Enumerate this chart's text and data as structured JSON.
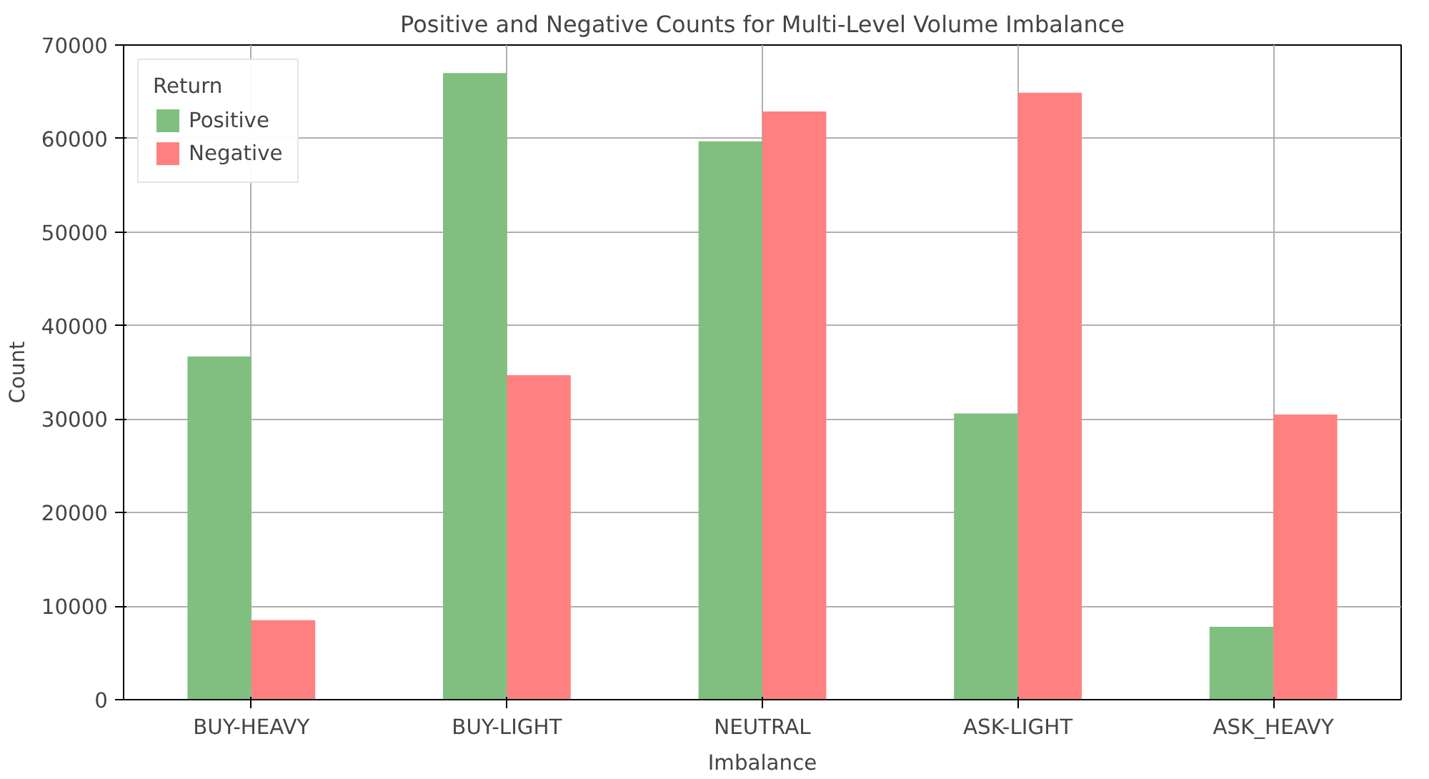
{
  "chart_data": {
    "type": "bar",
    "title": "Positive and Negative Counts for Multi-Level Volume Imbalance",
    "xlabel": "Imbalance",
    "ylabel": "Count",
    "legend_title": "Return",
    "categories": [
      "BUY-HEAVY",
      "BUY-LIGHT",
      "NEUTRAL",
      "ASK-LIGHT",
      "ASK_HEAVY"
    ],
    "series": [
      {
        "name": "Positive",
        "color": "#80bf80",
        "values": [
          36700,
          67000,
          59700,
          30600,
          7800
        ]
      },
      {
        "name": "Negative",
        "color": "#ff8080",
        "values": [
          8500,
          34700,
          62900,
          64900,
          30500
        ]
      }
    ],
    "ylim": [
      0,
      70000
    ],
    "yticks": [
      0,
      10000,
      20000,
      30000,
      40000,
      50000,
      60000,
      70000
    ],
    "grid": true,
    "legend": "top left"
  }
}
